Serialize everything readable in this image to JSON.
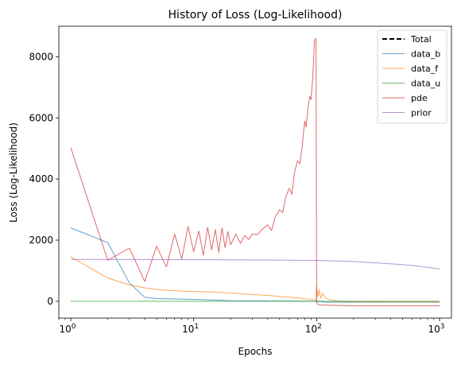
{
  "chart_data": {
    "type": "line",
    "title": "History of Loss (Log-Likelihood)",
    "xlabel": "Epochs",
    "ylabel": "Loss (Log-Likelihood)",
    "xscale": "log",
    "xlim": [
      0.8,
      1250
    ],
    "ylim": [
      -550,
      9000
    ],
    "xticks": [
      {
        "value": 1,
        "base": "10",
        "exp": "0"
      },
      {
        "value": 10,
        "base": "10",
        "exp": "1"
      },
      {
        "value": 100,
        "base": "10",
        "exp": "2"
      },
      {
        "value": 1000,
        "base": "10",
        "exp": "3"
      }
    ],
    "yticks": [
      0,
      2000,
      4000,
      6000,
      8000
    ],
    "grid": false,
    "legend_position": "top-right",
    "series": [
      {
        "name": "Total",
        "color": "#000000",
        "dashed": true,
        "width": 2,
        "points": []
      },
      {
        "name": "data_b",
        "color": "#1f77b4",
        "opacity": 0.7,
        "width": 1,
        "points": [
          [
            1,
            2400
          ],
          [
            2,
            1920
          ],
          [
            3,
            600
          ],
          [
            4,
            130
          ],
          [
            5,
            90
          ],
          [
            6,
            80
          ],
          [
            8,
            70
          ],
          [
            10,
            60
          ],
          [
            15,
            40
          ],
          [
            20,
            20
          ],
          [
            30,
            15
          ],
          [
            50,
            10
          ],
          [
            80,
            5
          ],
          [
            95,
            0
          ],
          [
            100,
            -10
          ],
          [
            120,
            -30
          ],
          [
            200,
            -30
          ],
          [
            500,
            -30
          ],
          [
            1000,
            -30
          ]
        ]
      },
      {
        "name": "data_f",
        "color": "#ff7f0e",
        "opacity": 0.7,
        "width": 1,
        "points": [
          [
            1,
            1460
          ],
          [
            2,
            760
          ],
          [
            3,
            540
          ],
          [
            4,
            440
          ],
          [
            5,
            390
          ],
          [
            6,
            360
          ],
          [
            8,
            330
          ],
          [
            10,
            320
          ],
          [
            15,
            300
          ],
          [
            20,
            270
          ],
          [
            30,
            220
          ],
          [
            40,
            190
          ],
          [
            50,
            160
          ],
          [
            70,
            110
          ],
          [
            90,
            60
          ],
          [
            99,
            30
          ],
          [
            100,
            480
          ],
          [
            102,
            150
          ],
          [
            105,
            380
          ],
          [
            108,
            100
          ],
          [
            112,
            260
          ],
          [
            118,
            120
          ],
          [
            125,
            60
          ],
          [
            140,
            20
          ],
          [
            160,
            0
          ],
          [
            200,
            -10
          ],
          [
            500,
            -15
          ],
          [
            1000,
            -15
          ]
        ]
      },
      {
        "name": "data_u",
        "color": "#2ca02c",
        "opacity": 0.7,
        "width": 1,
        "points": [
          [
            1,
            0
          ],
          [
            100,
            0
          ],
          [
            1000,
            0
          ]
        ]
      },
      {
        "name": "pde",
        "color": "#d62728",
        "opacity": 0.7,
        "width": 1,
        "points": [
          [
            1,
            5030
          ],
          [
            2,
            1340
          ],
          [
            3,
            1740
          ],
          [
            4,
            650
          ],
          [
            5,
            1800
          ],
          [
            6,
            1120
          ],
          [
            7,
            2200
          ],
          [
            8,
            1380
          ],
          [
            9,
            2450
          ],
          [
            10,
            1620
          ],
          [
            11,
            2300
          ],
          [
            12,
            1500
          ],
          [
            13,
            2420
          ],
          [
            14,
            1680
          ],
          [
            15,
            2350
          ],
          [
            16,
            1600
          ],
          [
            17,
            2400
          ],
          [
            18,
            1760
          ],
          [
            19,
            2280
          ],
          [
            20,
            1850
          ],
          [
            22,
            2200
          ],
          [
            24,
            1900
          ],
          [
            26,
            2150
          ],
          [
            28,
            2020
          ],
          [
            30,
            2200
          ],
          [
            33,
            2180
          ],
          [
            36,
            2350
          ],
          [
            40,
            2500
          ],
          [
            43,
            2320
          ],
          [
            46,
            2750
          ],
          [
            50,
            3000
          ],
          [
            53,
            2900
          ],
          [
            56,
            3400
          ],
          [
            60,
            3700
          ],
          [
            63,
            3500
          ],
          [
            66,
            4200
          ],
          [
            70,
            4600
          ],
          [
            73,
            4500
          ],
          [
            76,
            5000
          ],
          [
            80,
            5900
          ],
          [
            82,
            5700
          ],
          [
            85,
            6300
          ],
          [
            88,
            6700
          ],
          [
            90,
            6600
          ],
          [
            93,
            7300
          ],
          [
            96,
            8500
          ],
          [
            98,
            8600
          ],
          [
            99,
            8550
          ],
          [
            100,
            80
          ],
          [
            101,
            -80
          ],
          [
            103,
            -110
          ],
          [
            110,
            -120
          ],
          [
            130,
            -130
          ],
          [
            200,
            -150
          ],
          [
            500,
            -150
          ],
          [
            1000,
            -150
          ]
        ]
      },
      {
        "name": "prior",
        "color": "#9467bd",
        "opacity": 0.7,
        "width": 1,
        "points": [
          [
            1,
            1370
          ],
          [
            5,
            1365
          ],
          [
            10,
            1360
          ],
          [
            20,
            1355
          ],
          [
            50,
            1345
          ],
          [
            100,
            1335
          ],
          [
            200,
            1300
          ],
          [
            300,
            1260
          ],
          [
            500,
            1200
          ],
          [
            700,
            1140
          ],
          [
            1000,
            1060
          ]
        ]
      }
    ]
  }
}
